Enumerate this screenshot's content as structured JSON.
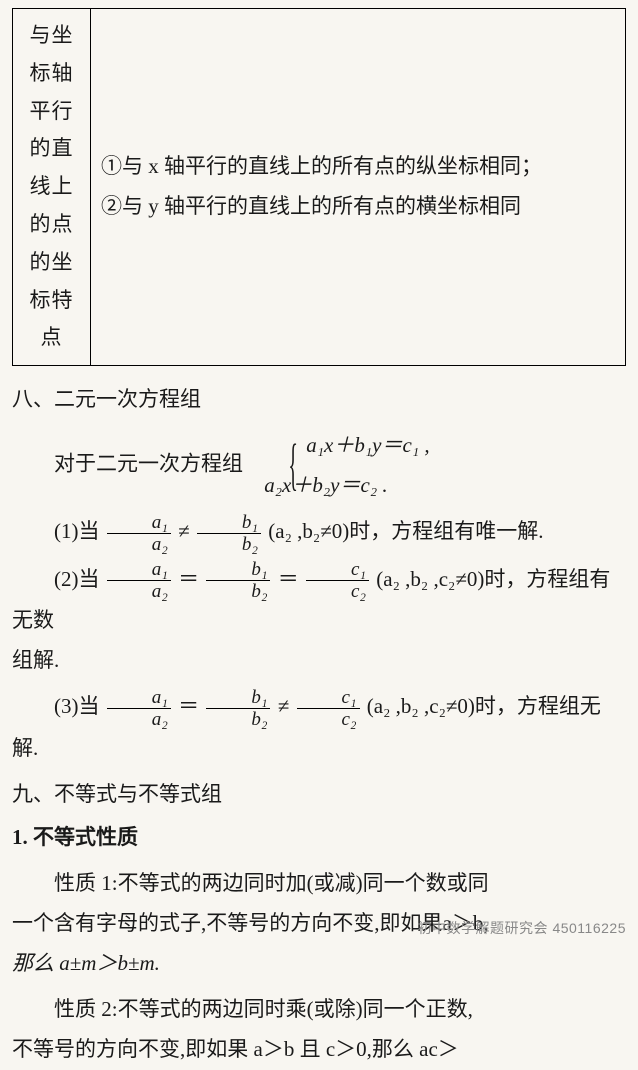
{
  "table": {
    "rowLabel": "与坐标轴平行的直线上的点的坐标特点",
    "cell": "①与 x 轴平行的直线上的所有点的纵坐标相同；\n②与 y 轴平行的直线上的所有点的横坐标相同"
  },
  "sec8": {
    "title": "八、二元一次方程组",
    "intro": "对于二元一次方程组",
    "eqA": "a₁x＋b₁y＝c₁ ,",
    "eqB": "a₂x＋b₂y＝c₂ .",
    "case1": {
      "num": "(1)当",
      "cond": "(a₂ ,b₂≠0)时，方程组有唯一解."
    },
    "case2": {
      "num": "(2)当",
      "cond": "(a₂ ,b₂ ,c₂≠0)时，方程组有无数"
    },
    "case2tail": "组解.",
    "case3": {
      "num": "(3)当",
      "cond": "(a₂ ,b₂ ,c₂≠0)时，方程组无解."
    },
    "frac": {
      "a1": "a₁",
      "a2": "a₂",
      "b1": "b₁",
      "b2": "b₂",
      "c1": "c₁",
      "c2": "c₂"
    },
    "ops": {
      "ne": "≠",
      "eq": "＝"
    }
  },
  "sec9": {
    "title": "九、不等式与不等式组",
    "sub1": "1. 不等式性质",
    "p1a": "性质 1:不等式的两边同时加(或减)同一个数或同",
    "p1b": "一个含有字母的式子,不等号的方向不变,即如果a＞b,",
    "p1c": "那么 a±m＞b±m.",
    "p2a": "性质 2:不等式的两边同时乘(或除)同一个正数,",
    "p2b": "不等号的方向不变,即如果 a＞b 且 c＞0,那么 ac＞"
  },
  "watermark": "初中数学解题研究会 450116225",
  "colors": {
    "bg": "#f8f6f1",
    "text": "#1a1a1a",
    "border": "#000000",
    "wm": "#888888"
  },
  "fonts": {
    "body_pt": 21,
    "frac_pt": 19,
    "sub_pt": 12,
    "wm_pt": 14
  }
}
